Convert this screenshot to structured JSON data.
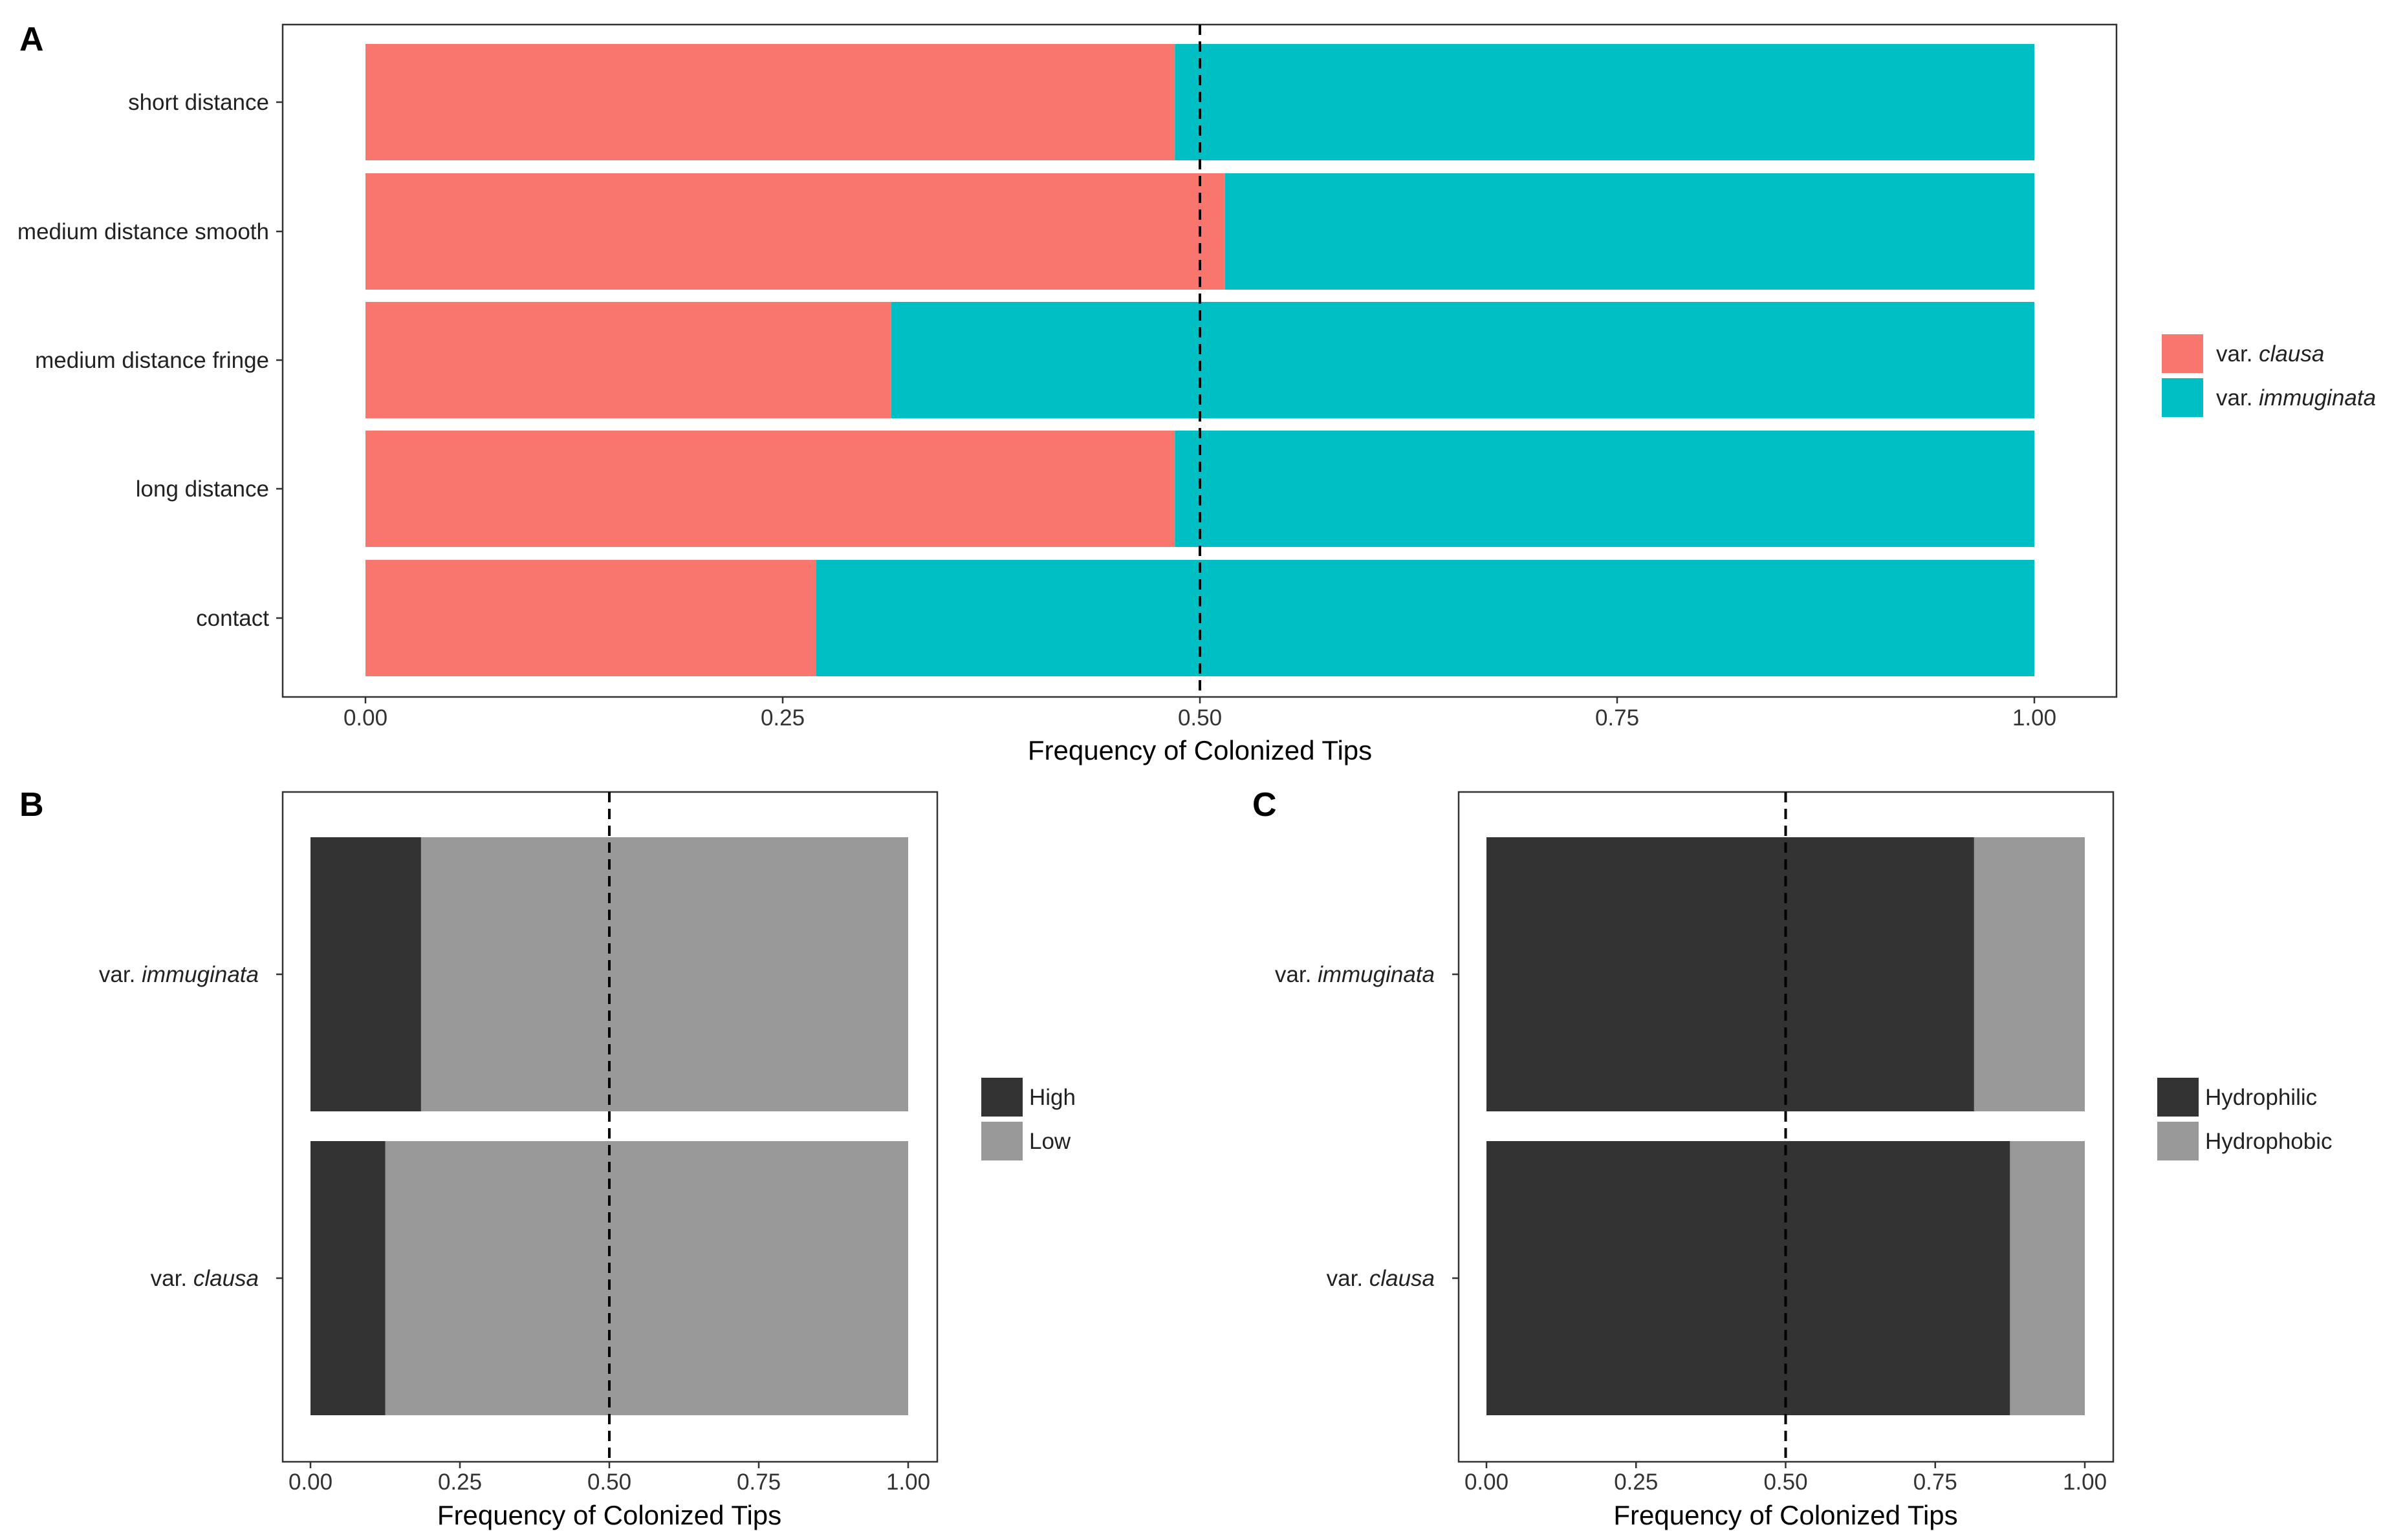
{
  "chart_data": [
    {
      "panel": "A",
      "type": "bar",
      "orientation": "horizontal",
      "stacked": true,
      "categories": [
        "short distance",
        "medium distance smooth",
        "medium distance fringe",
        "long distance",
        "contact"
      ],
      "series": [
        {
          "name_prefix": "var.",
          "name_italic": "clausa",
          "color": "#F8766D",
          "values": [
            0.485,
            0.515,
            0.315,
            0.485,
            0.27
          ]
        },
        {
          "name_prefix": "var.",
          "name_italic": "immuginata",
          "color": "#00BFC4",
          "values": [
            0.515,
            0.485,
            0.685,
            0.515,
            0.73
          ]
        }
      ],
      "xlim": [
        0,
        1
      ],
      "xticks": [
        "0.00",
        "0.25",
        "0.50",
        "0.75",
        "1.00"
      ],
      "reference_line": 0.5,
      "xlabel": "Frequency of Colonized Tips",
      "legend_position": "right"
    },
    {
      "panel": "B",
      "type": "bar",
      "orientation": "horizontal",
      "stacked": true,
      "categories": [
        {
          "prefix": "var.",
          "italic": "immuginata"
        },
        {
          "prefix": "var.",
          "italic": "clausa"
        }
      ],
      "series": [
        {
          "name": "High",
          "color": "#333333",
          "values": [
            0.185,
            0.125
          ]
        },
        {
          "name": "Low",
          "color": "#999999",
          "values": [
            0.815,
            0.875
          ]
        }
      ],
      "xlim": [
        0,
        1
      ],
      "xticks": [
        "0.00",
        "0.25",
        "0.50",
        "0.75",
        "1.00"
      ],
      "reference_line": 0.5,
      "xlabel": "Frequency of Colonized Tips",
      "legend_position": "right"
    },
    {
      "panel": "C",
      "type": "bar",
      "orientation": "horizontal",
      "stacked": true,
      "categories": [
        {
          "prefix": "var.",
          "italic": "immuginata"
        },
        {
          "prefix": "var.",
          "italic": "clausa"
        }
      ],
      "series": [
        {
          "name": "Hydrophilic",
          "color": "#333333",
          "values": [
            0.815,
            0.875
          ]
        },
        {
          "name": "Hydrophobic",
          "color": "#999999",
          "values": [
            0.185,
            0.125
          ]
        }
      ],
      "xlim": [
        0,
        1
      ],
      "xticks": [
        "0.00",
        "0.25",
        "0.50",
        "0.75",
        "1.00"
      ],
      "reference_line": 0.5,
      "xlabel": "Frequency of Colonized Tips",
      "legend_position": "right"
    }
  ]
}
